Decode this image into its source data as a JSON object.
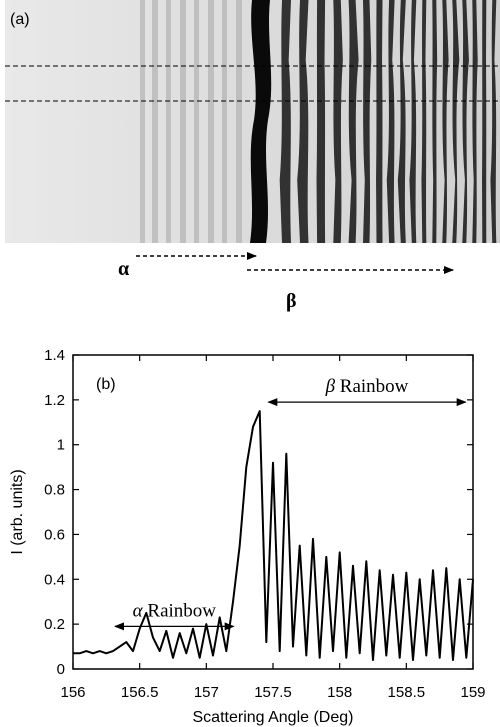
{
  "panel_a": {
    "label": "(a)",
    "arrow_labels": {
      "alpha": "α",
      "beta": "β"
    }
  },
  "chart_data": {
    "type": "line",
    "panel_label": "(b)",
    "title": "",
    "xlabel": "Scattering Angle (Deg)",
    "ylabel": "I (arb. units)",
    "xlim": [
      156,
      159
    ],
    "ylim": [
      0,
      1.4
    ],
    "x_ticks": [
      "156",
      "156.5",
      "157",
      "157.5",
      "158",
      "158.5",
      "159"
    ],
    "y_ticks": [
      "0",
      "0.2",
      "0.4",
      "0.6",
      "0.8",
      "1",
      "1.2",
      "1.4"
    ],
    "grid": false,
    "annotations": [
      {
        "symbol": "α",
        "text": "Rainbow",
        "x_range": [
          156.3,
          157.22
        ],
        "y": 0.19
      },
      {
        "symbol": "β",
        "text": "Rainbow",
        "x_range": [
          157.45,
          158.96
        ],
        "y": 1.19
      }
    ],
    "series": [
      {
        "x": [
          156.0,
          156.05,
          156.1,
          156.15,
          156.2,
          156.25,
          156.3,
          156.35,
          156.4,
          156.45,
          156.5,
          156.55,
          156.6,
          156.65,
          156.7,
          156.75,
          156.8,
          156.85,
          156.9,
          156.95,
          157.0,
          157.05,
          157.1,
          157.15,
          157.2,
          157.25,
          157.3,
          157.35,
          157.4,
          157.45,
          157.5,
          157.55,
          157.6,
          157.65,
          157.7,
          157.75,
          157.8,
          157.85,
          157.9,
          157.95,
          158.0,
          158.05,
          158.1,
          158.15,
          158.2,
          158.25,
          158.3,
          158.35,
          158.4,
          158.45,
          158.5,
          158.55,
          158.6,
          158.65,
          158.7,
          158.75,
          158.8,
          158.85,
          158.9,
          158.95,
          159.0
        ],
        "values": [
          0.07,
          0.07,
          0.08,
          0.07,
          0.08,
          0.07,
          0.08,
          0.1,
          0.12,
          0.08,
          0.18,
          0.25,
          0.14,
          0.08,
          0.17,
          0.05,
          0.16,
          0.07,
          0.18,
          0.05,
          0.2,
          0.06,
          0.23,
          0.08,
          0.3,
          0.55,
          0.9,
          1.08,
          1.15,
          0.12,
          0.92,
          0.08,
          0.96,
          0.1,
          0.55,
          0.06,
          0.58,
          0.05,
          0.5,
          0.08,
          0.52,
          0.05,
          0.46,
          0.07,
          0.48,
          0.04,
          0.44,
          0.06,
          0.42,
          0.05,
          0.43,
          0.04,
          0.4,
          0.06,
          0.44,
          0.05,
          0.45,
          0.04,
          0.4,
          0.05,
          0.4
        ]
      }
    ]
  }
}
